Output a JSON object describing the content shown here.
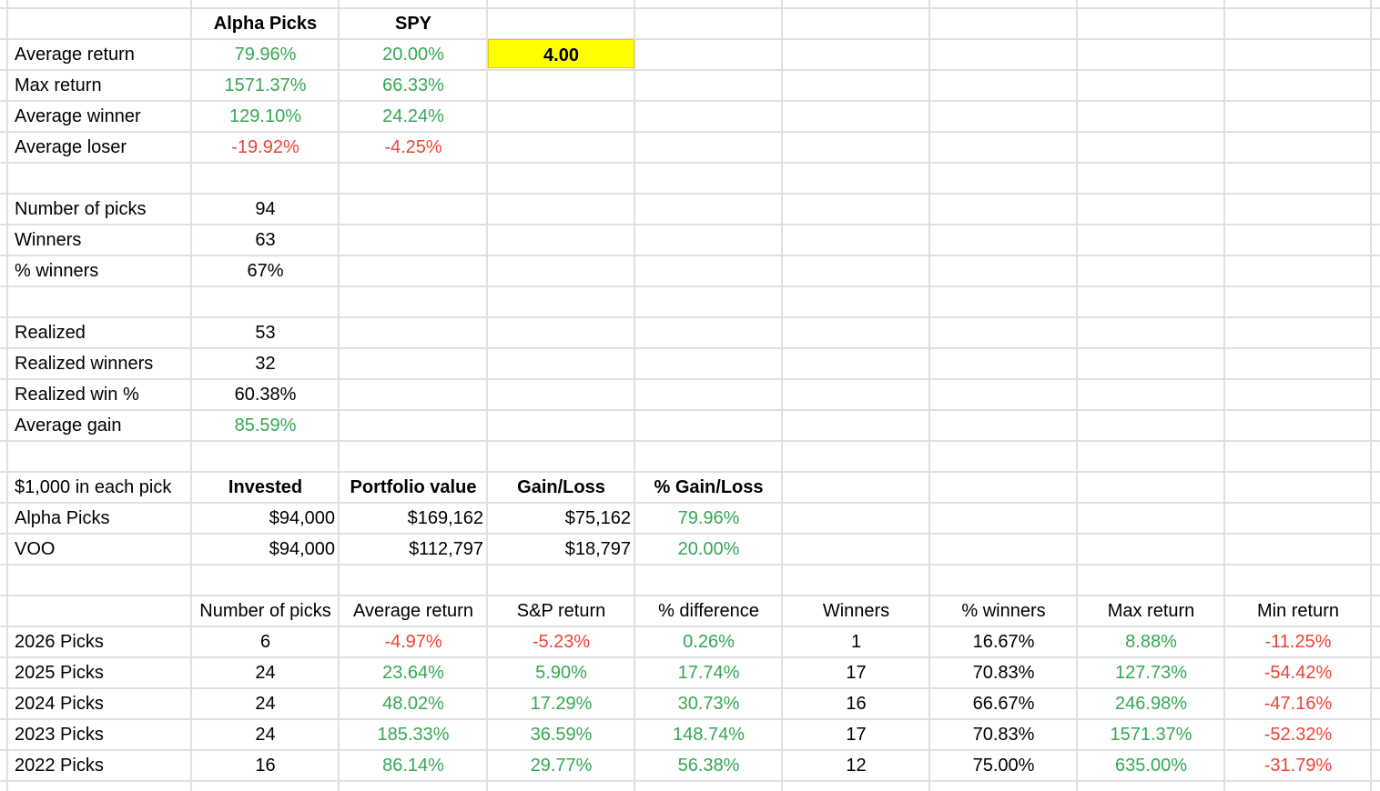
{
  "colors": {
    "positive": "#34a853",
    "negative": "#ea4335",
    "highlight": "#ffff00",
    "grid": "#e0e0e0"
  },
  "summary": {
    "headers": [
      "Alpha Picks",
      "SPY"
    ],
    "ratio_cell": "4.00",
    "rows": [
      {
        "label": "Average return",
        "alpha": "79.96%",
        "spy": "20.00%",
        "alpha_color": "g",
        "spy_color": "g"
      },
      {
        "label": "Max return",
        "alpha": "1571.37%",
        "spy": "66.33%",
        "alpha_color": "g",
        "spy_color": "g"
      },
      {
        "label": "Average winner",
        "alpha": "129.10%",
        "spy": "24.24%",
        "alpha_color": "g",
        "spy_color": "g"
      },
      {
        "label": "Average loser",
        "alpha": "-19.92%",
        "spy": "-4.25%",
        "alpha_color": "red",
        "spy_color": "red"
      }
    ]
  },
  "picks_stats": [
    {
      "label": "Number of picks",
      "value": "94"
    },
    {
      "label": "Winners",
      "value": "63"
    },
    {
      "label": "% winners",
      "value": "67%"
    }
  ],
  "realized_stats": [
    {
      "label": "Realized",
      "value": "53",
      "color": ""
    },
    {
      "label": "Realized winners",
      "value": "32",
      "color": ""
    },
    {
      "label": "Realized win %",
      "value": "60.38%",
      "color": ""
    },
    {
      "label": "Average gain",
      "value": "85.59%",
      "color": "g"
    }
  ],
  "portfolio": {
    "title": "$1,000 in each pick",
    "headers": [
      "Invested",
      "Portfolio value",
      "Gain/Loss",
      "% Gain/Loss"
    ],
    "rows": [
      {
        "label": "Alpha Picks",
        "invested": "$94,000",
        "value": "$169,162",
        "gain": "$75,162",
        "pct": "79.96%"
      },
      {
        "label": "VOO",
        "invested": "$94,000",
        "value": "$112,797",
        "gain": "$18,797",
        "pct": "20.00%"
      }
    ]
  },
  "yearly": {
    "headers": [
      "Number of picks",
      "Average return",
      "S&P return",
      "% difference",
      "Winners",
      "% winners",
      "Max return",
      "Min return"
    ],
    "rows": [
      {
        "label": "2026 Picks",
        "cells": [
          "6",
          "-4.97%",
          "-5.23%",
          "0.26%",
          "1",
          "16.67%",
          "8.88%",
          "-11.25%"
        ],
        "colors": [
          "",
          "red",
          "red",
          "g",
          "",
          "",
          "g",
          "red"
        ]
      },
      {
        "label": "2025 Picks",
        "cells": [
          "24",
          "23.64%",
          "5.90%",
          "17.74%",
          "17",
          "70.83%",
          "127.73%",
          "-54.42%"
        ],
        "colors": [
          "",
          "g",
          "g",
          "g",
          "",
          "",
          "g",
          "red"
        ]
      },
      {
        "label": "2024 Picks",
        "cells": [
          "24",
          "48.02%",
          "17.29%",
          "30.73%",
          "16",
          "66.67%",
          "246.98%",
          "-47.16%"
        ],
        "colors": [
          "",
          "g",
          "g",
          "g",
          "",
          "",
          "g",
          "red"
        ]
      },
      {
        "label": "2023 Picks",
        "cells": [
          "24",
          "185.33%",
          "36.59%",
          "148.74%",
          "17",
          "70.83%",
          "1571.37%",
          "-52.32%"
        ],
        "colors": [
          "",
          "g",
          "g",
          "g",
          "",
          "",
          "g",
          "red"
        ]
      },
      {
        "label": "2022 Picks",
        "cells": [
          "16",
          "86.14%",
          "29.77%",
          "56.38%",
          "12",
          "75.00%",
          "635.00%",
          "-31.79%"
        ],
        "colors": [
          "",
          "g",
          "g",
          "g",
          "",
          "",
          "g",
          "red"
        ]
      }
    ]
  }
}
